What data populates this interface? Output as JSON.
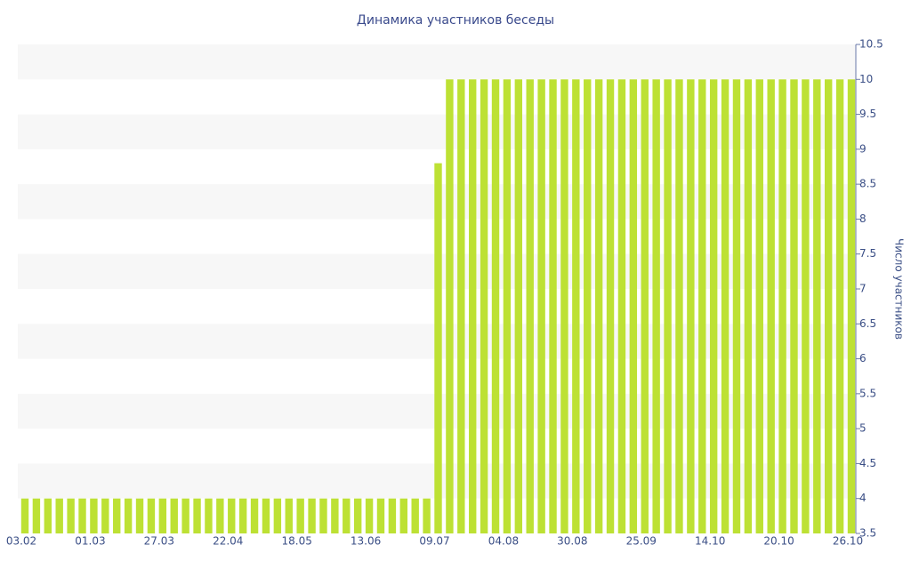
{
  "chart_data": {
    "type": "bar",
    "title": "Динамика участников беседы",
    "y_axis_label": "Число участников",
    "categories": [
      "03.02",
      null,
      null,
      null,
      null,
      null,
      "01.03",
      null,
      null,
      null,
      null,
      null,
      "27.03",
      null,
      null,
      null,
      null,
      null,
      "22.04",
      null,
      null,
      null,
      null,
      null,
      "18.05",
      null,
      null,
      null,
      null,
      null,
      "13.06",
      null,
      null,
      null,
      null,
      null,
      "09.07",
      null,
      null,
      null,
      null,
      null,
      "04.08",
      null,
      null,
      null,
      null,
      null,
      "30.08",
      null,
      null,
      null,
      null,
      null,
      "25.09",
      null,
      null,
      null,
      null,
      null,
      "14.10",
      null,
      null,
      null,
      null,
      null,
      "20.10",
      null,
      null,
      null,
      null,
      null,
      "26.10"
    ],
    "values": [
      4,
      4,
      4,
      4,
      4,
      4,
      4,
      4,
      4,
      4,
      4,
      4,
      4,
      4,
      4,
      4,
      4,
      4,
      4,
      4,
      4,
      4,
      4,
      4,
      4,
      4,
      4,
      4,
      4,
      4,
      4,
      4,
      4,
      4,
      4,
      4,
      8.8,
      10,
      10,
      10,
      10,
      10,
      10,
      10,
      10,
      10,
      10,
      10,
      10,
      10,
      10,
      10,
      10,
      10,
      10,
      10,
      10,
      10,
      10,
      10,
      10,
      10,
      10,
      10,
      10,
      10,
      10,
      10,
      10,
      10,
      10,
      10,
      10
    ],
    "color": "#bde134",
    "ylim": [
      3.5,
      10.5
    ],
    "yticks": [
      3.5,
      4,
      4.5,
      5,
      5.5,
      6,
      6.5,
      7,
      7.5,
      8,
      8.5,
      9,
      9.5,
      10,
      10.5
    ],
    "grid": true,
    "y_axis_side": "right"
  }
}
